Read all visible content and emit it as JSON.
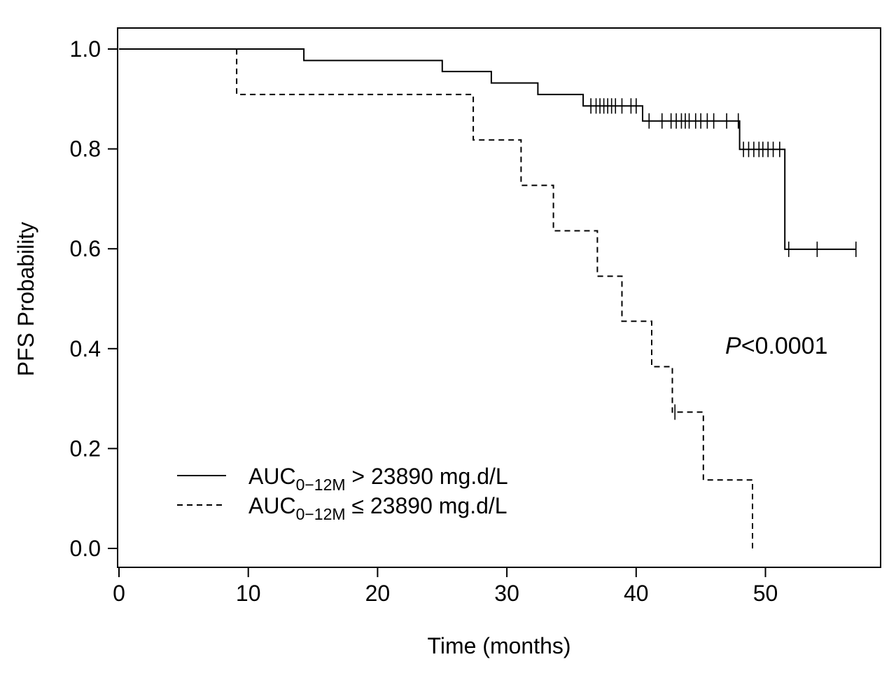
{
  "chart_data": {
    "type": "line",
    "subtype": "kaplan-meier",
    "title": "",
    "xlabel": "Time (months)",
    "ylabel": "PFS Probability",
    "xlim": [
      0,
      58
    ],
    "ylim": [
      0,
      1.0
    ],
    "xticks": [
      0,
      10,
      20,
      30,
      40,
      50
    ],
    "xtick_labels": [
      "0",
      "10",
      "20",
      "30",
      "40",
      "50"
    ],
    "yticks": [
      0.0,
      0.2,
      0.4,
      0.6,
      0.8,
      1.0
    ],
    "ytick_labels": [
      "0.0",
      "0.2",
      "0.4",
      "0.6",
      "0.8",
      "1.0"
    ],
    "grid": false,
    "annotation": {
      "prefix": "P",
      "text": "<0.0001"
    },
    "series": [
      {
        "name": "AUC0−12M > 23890 mg.d/L",
        "legend_main": "AUC",
        "legend_sub": "0−12M",
        "legend_rest": " > 23890 mg.d/L",
        "line_style": "solid",
        "steps": [
          [
            0,
            1.0
          ],
          [
            14.3,
            0.977
          ],
          [
            25.0,
            0.955
          ],
          [
            28.8,
            0.932
          ],
          [
            32.4,
            0.909
          ],
          [
            35.9,
            0.886
          ],
          [
            40.5,
            0.856
          ],
          [
            48.0,
            0.799
          ],
          [
            51.5,
            0.599
          ]
        ],
        "end_time": 57.0,
        "censor_times": [
          36.5,
          36.9,
          37.2,
          37.5,
          37.8,
          38.1,
          38.4,
          38.9,
          39.6,
          40.0,
          41.0,
          42.0,
          42.7,
          43.1,
          43.5,
          43.8,
          44.1,
          44.6,
          45.0,
          45.5,
          46.0,
          47.0,
          47.9,
          48.3,
          48.7,
          49.1,
          49.5,
          49.8,
          50.2,
          50.6,
          51.1,
          51.8,
          54.0,
          57.0
        ]
      },
      {
        "name": "AUC0−12M ≤ 23890 mg.d/L",
        "legend_main": "AUC",
        "legend_sub": "0−12M",
        "legend_rest": " ≤ 23890 mg.d/L",
        "line_style": "dashed",
        "steps": [
          [
            0,
            1.0
          ],
          [
            9.1,
            0.909
          ],
          [
            27.4,
            0.818
          ],
          [
            31.1,
            0.727
          ],
          [
            33.6,
            0.636
          ],
          [
            37.0,
            0.545
          ],
          [
            38.9,
            0.455
          ],
          [
            41.2,
            0.364
          ],
          [
            42.8,
            0.273
          ],
          [
            45.2,
            0.137
          ],
          [
            49.0,
            0.0
          ]
        ],
        "end_time": 49.0,
        "censor_times": [
          43.0
        ]
      }
    ]
  }
}
